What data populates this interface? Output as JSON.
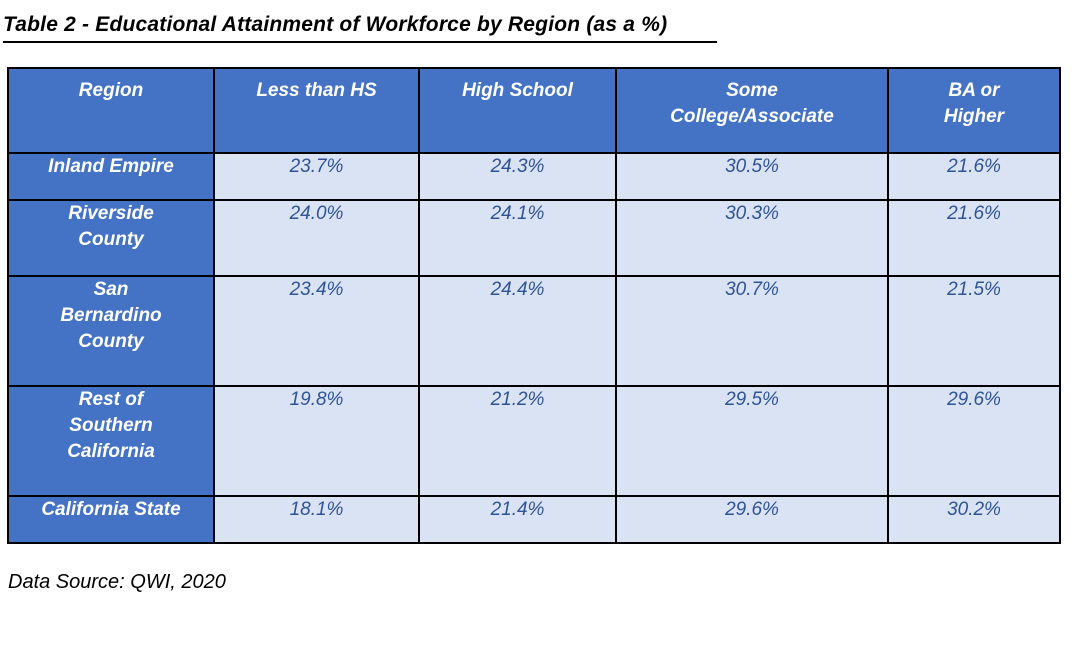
{
  "title": "Table 2 - Educational Attainment of Workforce by Region (as a %)",
  "footer": "Data Source: QWI, 2020",
  "colors": {
    "header_bg": "#4472C4",
    "header_text": "#FFFFFF",
    "data_cell_bg": "#DAE3F3",
    "data_text": "#2F5496",
    "border": "#000000",
    "title_text": "#000000"
  },
  "table": {
    "header": [
      {
        "label": "Region",
        "lines": [
          "Region"
        ]
      },
      {
        "label": "Less than HS",
        "lines": [
          "Less than HS"
        ]
      },
      {
        "label": "High School",
        "lines": [
          "High School"
        ]
      },
      {
        "label": "Some College/Associate",
        "lines": [
          "Some",
          "College/Associate"
        ]
      },
      {
        "label": "BA or Higher",
        "lines": [
          "BA or",
          "Higher"
        ]
      }
    ],
    "rows": [
      {
        "region": "Inland Empire",
        "lines": [
          "Inland Empire"
        ],
        "values": [
          "23.7%",
          "24.3%",
          "30.5%",
          "21.6%"
        ]
      },
      {
        "region": "Riverside County",
        "lines": [
          "Riverside",
          "County"
        ],
        "values": [
          "24.0%",
          "24.1%",
          "30.3%",
          "21.6%"
        ]
      },
      {
        "region": "San Bernardino County",
        "lines": [
          "San",
          "Bernardino",
          "County"
        ],
        "values": [
          "23.4%",
          "24.4%",
          "30.7%",
          "21.5%"
        ]
      },
      {
        "region": "Rest of Southern California",
        "lines": [
          "Rest of",
          "Southern",
          "California"
        ],
        "values": [
          "19.8%",
          "21.2%",
          "29.5%",
          "29.6%"
        ]
      },
      {
        "region": "California State",
        "lines": [
          "California State"
        ],
        "values": [
          "18.1%",
          "21.4%",
          "29.6%",
          "30.2%"
        ]
      }
    ]
  },
  "chart_data": {
    "type": "table",
    "title": "Table 2 - Educational Attainment of Workforce by Region (as a %)",
    "categories": [
      "Inland Empire",
      "Riverside County",
      "San Bernardino County",
      "Rest of Southern California",
      "California State"
    ],
    "series": [
      {
        "name": "Less than HS",
        "values": [
          23.7,
          24.0,
          23.4,
          19.8,
          18.1
        ]
      },
      {
        "name": "High School",
        "values": [
          24.3,
          24.1,
          24.4,
          21.2,
          21.4
        ]
      },
      {
        "name": "Some College/Associate",
        "values": [
          30.5,
          30.3,
          30.7,
          29.5,
          29.6
        ]
      },
      {
        "name": "BA or Higher",
        "values": [
          21.6,
          21.6,
          21.5,
          29.6,
          30.2
        ]
      }
    ],
    "source": "Data Source: QWI, 2020"
  }
}
